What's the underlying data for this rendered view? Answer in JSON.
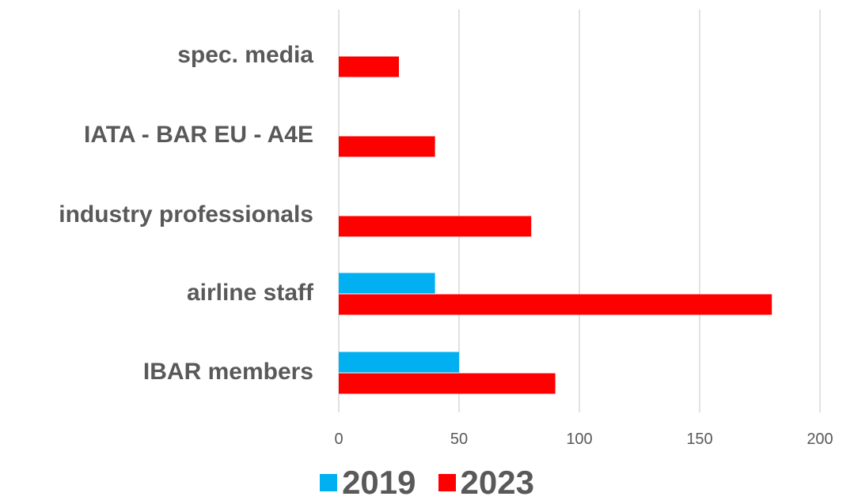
{
  "chart_data": {
    "type": "bar",
    "orientation": "horizontal",
    "categories": [
      "spec. media",
      "IATA - BAR EU - A4E",
      "industry professionals",
      "airline staff",
      "IBAR members"
    ],
    "series": [
      {
        "name": "2019",
        "color": "#00b0f0",
        "values": [
          0,
          0,
          0,
          40,
          50
        ]
      },
      {
        "name": "2023",
        "color": "#ff0000",
        "values": [
          25,
          40,
          80,
          180,
          90
        ]
      }
    ],
    "xlim": [
      0,
      200
    ],
    "xticks": [
      0,
      50,
      100,
      150,
      200
    ],
    "grid": true,
    "legend_position": "bottom"
  }
}
